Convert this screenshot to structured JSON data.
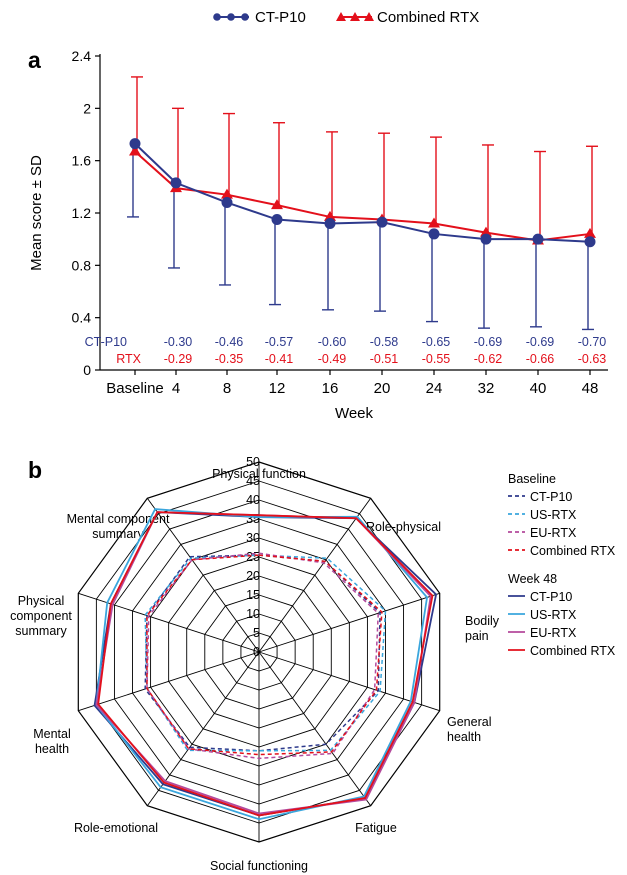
{
  "chart_data": [
    {
      "panel": "a",
      "type": "line",
      "xlabel": "Week",
      "ylabel": "Mean score ± SD",
      "categories": [
        "Baseline",
        "4",
        "8",
        "12",
        "16",
        "20",
        "24",
        "32",
        "40",
        "48"
      ],
      "ylim": [
        0,
        2.4
      ],
      "yticks": [
        "0",
        "0.4",
        "0.8",
        "1.2",
        "1.6",
        "2",
        "2.4"
      ],
      "legend_position": "top-center",
      "series": [
        {
          "name": "CT-P10",
          "color": "#2e3a8c",
          "marker": "circle",
          "values": [
            1.73,
            1.43,
            1.28,
            1.15,
            1.12,
            1.13,
            1.04,
            1.0,
            1.0,
            0.98
          ],
          "sd_low": [
            1.17,
            0.78,
            0.65,
            0.5,
            0.46,
            0.45,
            0.37,
            0.32,
            0.33,
            0.31
          ],
          "sd_high_visible": false,
          "change_label": "CT-P10",
          "change": [
            "",
            "-0.30",
            "-0.46",
            "-0.57",
            "-0.60",
            "-0.58",
            "-0.65",
            "-0.69",
            "-0.69",
            "-0.70"
          ]
        },
        {
          "name": "Combined RTX",
          "color": "#e3101b",
          "marker": "triangle",
          "values": [
            1.67,
            1.39,
            1.34,
            1.26,
            1.17,
            1.15,
            1.12,
            1.05,
            0.99,
            1.04
          ],
          "sd_high": [
            2.24,
            2.0,
            1.96,
            1.89,
            1.82,
            1.81,
            1.78,
            1.72,
            1.67,
            1.71
          ],
          "change_label": "RTX",
          "change": [
            "",
            "-0.29",
            "-0.35",
            "-0.41",
            "-0.49",
            "-0.51",
            "-0.55",
            "-0.62",
            "-0.66",
            "-0.63"
          ]
        }
      ]
    },
    {
      "panel": "b",
      "type": "radar",
      "axes": [
        "Physical function",
        "Role-physical",
        "Bodily pain",
        "General health",
        "Fatigue",
        "Social functioning",
        "Role-emotional",
        "Mental health",
        "Physical component summary",
        "Mental component summary"
      ],
      "axis_label_lines": [
        [
          "Physical function"
        ],
        [
          "Role-physical"
        ],
        [
          "Bodily",
          "pain"
        ],
        [
          "General",
          "health"
        ],
        [
          "Fatigue"
        ],
        [
          "Social functioning"
        ],
        [
          "Role-emotional"
        ],
        [
          "Mental",
          "health"
        ],
        [
          "Physical",
          "component",
          "summary"
        ],
        [
          "Mental component",
          "summary"
        ]
      ],
      "rlim": [
        0,
        50
      ],
      "rticks": [
        "0",
        "5",
        "10",
        "15",
        "20",
        "25",
        "30",
        "35",
        "40",
        "45",
        "50"
      ],
      "groups": [
        {
          "title": "Baseline",
          "line_style": "dashed",
          "series": [
            {
              "name": "CT-P10",
              "color": "#2e3a8c",
              "values": [
                25.5,
                29.5,
                33.5,
                33,
                30,
                26,
                31,
                31.5,
                31,
                31
              ]
            },
            {
              "name": "US-RTX",
              "color": "#3aa6dd",
              "values": [
                25.5,
                30.5,
                35,
                33.5,
                32,
                26,
                32,
                31,
                31.5,
                30.5
              ]
            },
            {
              "name": "EU-RTX",
              "color": "#b44a9c",
              "values": [
                26,
                29,
                33,
                32,
                33,
                28,
                31.5,
                31,
                30.5,
                30
              ]
            },
            {
              "name": "Combined RTX",
              "color": "#e3101b",
              "values": [
                25.5,
                29.5,
                34,
                32.5,
                32.5,
                27,
                31.5,
                31,
                31,
                30
              ]
            }
          ]
        },
        {
          "title": "Week 48",
          "line_style": "solid",
          "series": [
            {
              "name": "CT-P10",
              "color": "#2e3a8c",
              "values": [
                35.5,
                43.5,
                49,
                43,
                47.5,
                43,
                43,
                45.5,
                41,
                45.5
              ]
            },
            {
              "name": "US-RTX",
              "color": "#3aa6dd",
              "values": [
                35.5,
                44,
                46.5,
                42,
                47,
                44,
                44,
                45,
                42,
                46.5
              ]
            },
            {
              "name": "EU-RTX",
              "color": "#b44a9c",
              "values": [
                36,
                43.5,
                47.5,
                43,
                48,
                42.5,
                42,
                45,
                40.5,
                45.5
              ]
            },
            {
              "name": "Combined RTX",
              "color": "#e3101b",
              "values": [
                36,
                43.5,
                48,
                42.5,
                47.5,
                43,
                42.5,
                44.5,
                41,
                45.5
              ]
            }
          ]
        }
      ]
    }
  ],
  "panel_labels": {
    "a": "a",
    "b": "b"
  }
}
